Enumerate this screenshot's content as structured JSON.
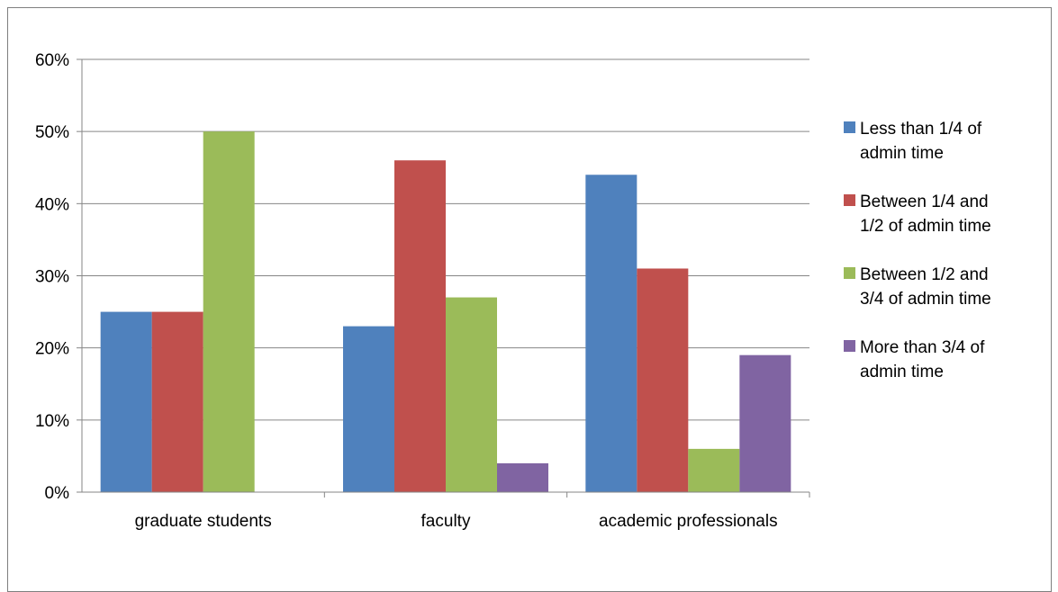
{
  "chart_data": {
    "type": "bar",
    "categories": [
      "graduate students",
      "faculty",
      "academic professionals"
    ],
    "series": [
      {
        "name": "Less than 1/4 of admin time",
        "legend_lines": [
          "Less than 1/4 of",
          "admin time"
        ],
        "color": "#4f81bd",
        "values": [
          25,
          23,
          44
        ]
      },
      {
        "name": "Between 1/4 and 1/2 of admin time",
        "legend_lines": [
          "Between 1/4 and",
          "1/2 of admin time"
        ],
        "color": "#c0504d",
        "values": [
          25,
          46,
          31
        ]
      },
      {
        "name": "Between 1/2 and 3/4 of admin time",
        "legend_lines": [
          "Between 1/2 and",
          "3/4 of admin time"
        ],
        "color": "#9bbb59",
        "values": [
          50,
          27,
          6
        ]
      },
      {
        "name": "More than 3/4 of admin time",
        "legend_lines": [
          "More than 3/4 of",
          "admin time"
        ],
        "color": "#8064a2",
        "values": [
          0,
          4,
          19
        ]
      }
    ],
    "ylim": [
      0,
      60
    ],
    "yticks": [
      0,
      10,
      20,
      30,
      40,
      50,
      60
    ],
    "ytick_labels": [
      "0%",
      "10%",
      "20%",
      "30%",
      "40%",
      "50%",
      "60%"
    ],
    "grid": true,
    "legend_position": "right",
    "title": "",
    "xlabel": "",
    "ylabel": ""
  }
}
